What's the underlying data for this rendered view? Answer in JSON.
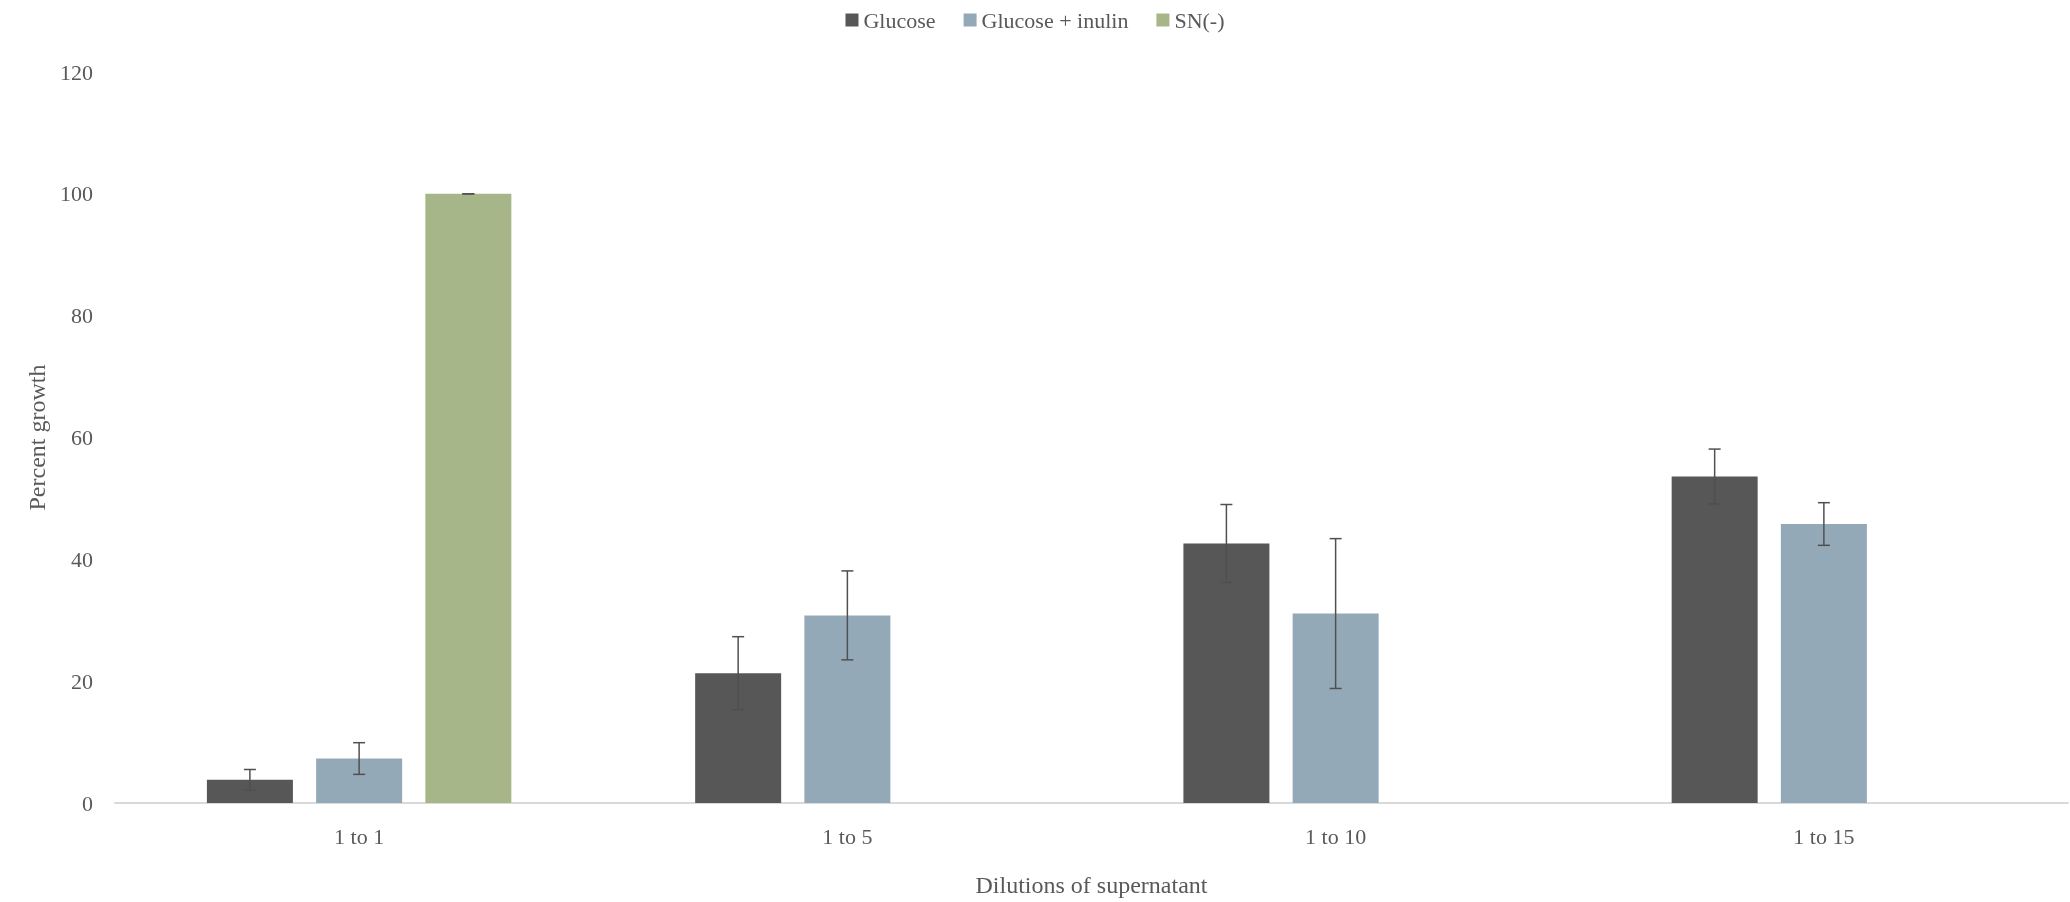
{
  "chart_data": {
    "type": "bar",
    "xlabel": "Dilutions of supernatant",
    "ylabel": "Percent growth",
    "categories": [
      "1 to 1",
      "1 to 5",
      "1 to 10",
      "1 to 15"
    ],
    "series": [
      {
        "name": "Glucose",
        "color": "#575757",
        "values": [
          3.8,
          21.3,
          42.6,
          53.6
        ],
        "errors": [
          1.7,
          6.0,
          6.4,
          4.5
        ]
      },
      {
        "name": "Glucose + inulin",
        "color": "#93a9b8",
        "values": [
          7.3,
          30.8,
          31.1,
          45.8
        ],
        "errors": [
          2.6,
          7.3,
          12.3,
          3.5
        ]
      },
      {
        "name": "SN(-)",
        "color": "#a6b688",
        "values": [
          100,
          null,
          null,
          null
        ],
        "errors": [
          0,
          null,
          null,
          null
        ]
      }
    ],
    "ylim": [
      0,
      120
    ],
    "yticks": [
      0,
      20,
      40,
      60,
      80,
      100,
      120
    ],
    "grid": false,
    "legend": "top"
  }
}
